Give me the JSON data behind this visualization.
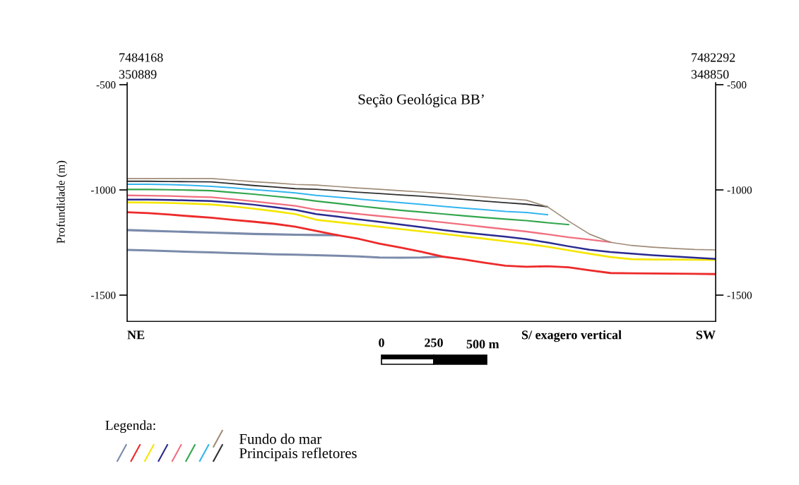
{
  "chart_data": {
    "type": "line",
    "title": "Seção Geológica BB’",
    "ylabel": "Profundidade (m)",
    "legend_title": "Legenda:",
    "categories": [
      null,
      null,
      null,
      null,
      null,
      null,
      null,
      null,
      null,
      null,
      null,
      null,
      null,
      null,
      null,
      null,
      null,
      null,
      null,
      null,
      null,
      null,
      null,
      null,
      null,
      null,
      null,
      null,
      null
    ],
    "ylim": [
      -1625,
      -490
    ],
    "yticks": [
      -500,
      -1000,
      -1500
    ],
    "y2lim": [
      -1625,
      -490
    ],
    "y2ticks": [
      -500,
      -1000,
      -1500
    ],
    "tick_labels": "y",
    "grid": false,
    "legend": "bottom left",
    "marker": "none",
    "line_style": "solid",
    "series": [
      {
        "color": "#7a8aaa",
        "values": [
          -1191,
          -1194,
          -1197,
          -1200,
          -1203,
          -1206,
          -1209,
          -1211,
          -1213,
          -1214,
          -1215,
          null,
          null,
          null,
          null,
          null,
          null,
          null,
          null,
          null,
          null,
          null,
          null,
          null,
          null,
          null,
          null,
          null,
          null
        ]
      },
      {
        "color": "#7a8aaa",
        "values": [
          -1285,
          -1288,
          -1291,
          -1294,
          -1297,
          -1300,
          -1303,
          -1306,
          -1308,
          -1310,
          -1313,
          -1316,
          -1321,
          -1322,
          -1321,
          -1317,
          null,
          null,
          null,
          null,
          null,
          null,
          null,
          null,
          null,
          null,
          null,
          null,
          null
        ]
      },
      {
        "color": "#ee2a2a",
        "values": [
          -1106,
          -1110,
          -1117,
          -1125,
          -1132,
          -1142,
          -1151,
          -1161,
          -1175,
          -1195,
          -1215,
          -1232,
          -1255,
          -1274,
          -1294,
          -1317,
          -1330,
          -1346,
          -1360,
          -1365,
          -1363,
          -1368,
          -1382,
          -1395,
          -1396,
          -1397,
          -1398,
          -1399,
          -1400
        ]
      },
      {
        "color": "#f5e600",
        "values": [
          -1059,
          -1060,
          -1062,
          -1065,
          -1069,
          -1078,
          -1089,
          -1101,
          -1115,
          -1142,
          -1153,
          -1164,
          -1175,
          -1186,
          -1197,
          -1208,
          -1220,
          -1232,
          -1244,
          -1256,
          -1270,
          -1287,
          -1303,
          -1319,
          -1329,
          -1331,
          -1331,
          -1332,
          -1333
        ]
      },
      {
        "color": "#2a2a90",
        "values": [
          -1046,
          -1046,
          -1048,
          -1050,
          -1053,
          -1060,
          -1070,
          -1082,
          -1095,
          -1115,
          -1127,
          -1140,
          -1152,
          -1164,
          -1177,
          -1190,
          -1202,
          -1212,
          -1222,
          -1234,
          -1250,
          -1268,
          -1284,
          -1295,
          -1303,
          -1310,
          -1316,
          -1322,
          -1328
        ]
      },
      {
        "color": "#f07080",
        "values": [
          -1026,
          -1027,
          -1029,
          -1032,
          -1035,
          -1044,
          -1054,
          -1065,
          -1076,
          -1094,
          -1104,
          -1114,
          -1124,
          -1134,
          -1144,
          -1154,
          -1165,
          -1176,
          -1187,
          -1198,
          -1211,
          -1225,
          -1236,
          -1248,
          null,
          null,
          null,
          null,
          null
        ]
      },
      {
        "color": "#33a64d",
        "values": [
          -998,
          -998,
          -999,
          -1001,
          -1004,
          -1012,
          -1020,
          -1030,
          -1040,
          -1053,
          -1064,
          -1076,
          -1087,
          -1097,
          -1105,
          -1114,
          -1123,
          -1131,
          -1139,
          -1146,
          -1156,
          -1165,
          null,
          null,
          null,
          null,
          null,
          null,
          null
        ]
      },
      {
        "color": "#33b5f0",
        "values": [
          -973,
          -973,
          -975,
          -978,
          -983,
          -990,
          -998,
          -1006,
          -1014,
          -1026,
          -1034,
          -1043,
          -1052,
          -1060,
          -1069,
          -1078,
          -1086,
          -1094,
          -1102,
          -1107,
          -1118,
          null,
          null,
          null,
          null,
          null,
          null,
          null,
          null
        ]
      },
      {
        "name": "Principais refletores",
        "color": "#303030",
        "values": [
          -959,
          -959,
          -960,
          -961,
          -962,
          -970,
          -979,
          -986,
          -994,
          -997,
          -1004,
          -1011,
          -1017,
          -1024,
          -1030,
          -1037,
          -1045,
          -1053,
          -1061,
          -1068,
          -1080,
          null,
          null,
          null,
          null,
          null,
          null,
          null,
          null
        ]
      },
      {
        "name": "Fundo do mar",
        "color": "#a08c78",
        "values": [
          -946,
          -946,
          -946,
          -946,
          -946,
          -953,
          -961,
          -967,
          -974,
          -977,
          -984,
          -991,
          -997,
          -1004,
          -1010,
          -1017,
          -1025,
          -1033,
          -1041,
          -1049,
          -1080,
          -1148,
          -1210,
          -1249,
          -1264,
          -1272,
          -1278,
          -1283,
          -1285
        ]
      }
    ],
    "annotations": [
      "7484168\n350889",
      "7482292\n348850",
      "NE",
      "SW",
      "S/ exagero vertical",
      "0",
      "250",
      "500 m"
    ]
  }
}
